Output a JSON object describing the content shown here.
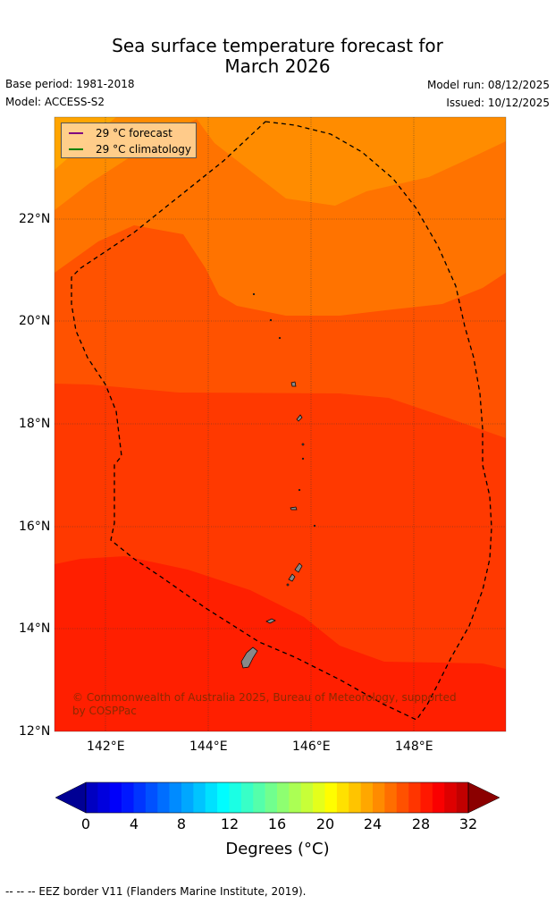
{
  "title_line1": "Sea surface temperature forecast for",
  "title_line2": "March 2026",
  "base_period": "Base period: 1981-2018",
  "model": "Model: ACCESS-S2",
  "model_run": "Model run: 08/12/2025",
  "issued": "Issued: 10/12/2025",
  "legend": {
    "forecast": {
      "label": "29 °C  forecast",
      "color": "#800080"
    },
    "climatology": {
      "label": "29 °C  climatology",
      "color": "#008000"
    }
  },
  "copyright": "© Commonwealth of Australia 2025, Bureau of Meteorology, supported by COSPPac",
  "lat_labels": [
    "22°N",
    "20°N",
    "18°N",
    "16°N",
    "14°N",
    "12°N"
  ],
  "lon_labels": [
    "142°E",
    "144°E",
    "146°E",
    "148°E"
  ],
  "colorbar": {
    "ticks": [
      "0",
      "4",
      "8",
      "12",
      "16",
      "20",
      "24",
      "28",
      "32"
    ],
    "label": "Degrees (°C)"
  },
  "footer": "--  --  -- EEZ border V11 (Flanders Marine Institute, 2019).",
  "colors": {
    "band_coolest": "#ffa500",
    "band_26": "#ff8c00",
    "band_27": "#ff7300",
    "band_28": "#ff5200",
    "band_29": "#ff3900",
    "band_30": "#ff1f00",
    "land": "#888888"
  }
}
